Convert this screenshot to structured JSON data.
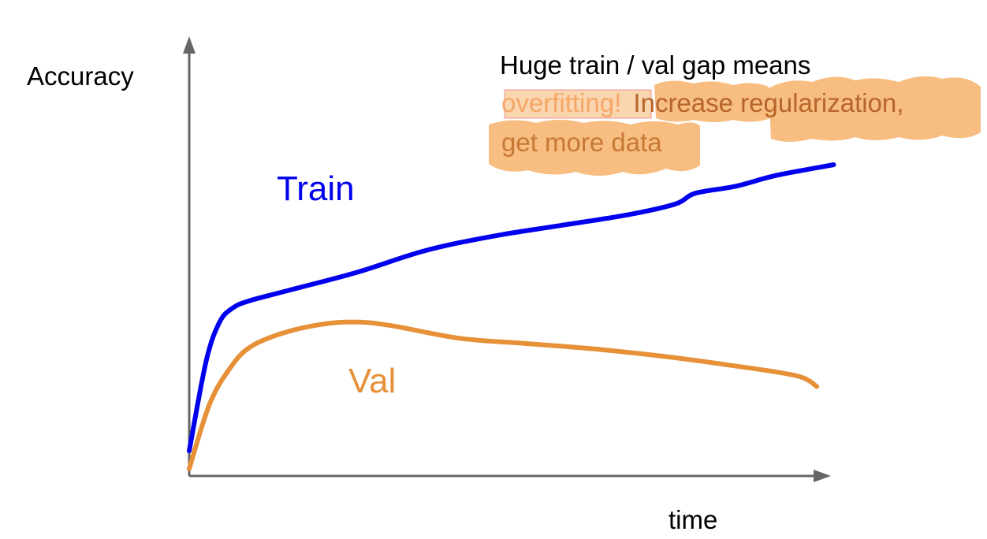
{
  "chart_data": {
    "type": "line",
    "title": "",
    "xlabel": "time",
    "ylabel": "Accuracy",
    "xlim": [
      0,
      100
    ],
    "ylim": [
      0,
      100
    ],
    "grid": false,
    "series": [
      {
        "name": "Train",
        "color": "#0000ee",
        "x": [
          0,
          2.5,
          4.5,
          6.5,
          9,
          15,
          25,
          35,
          45,
          55,
          65,
          72,
          75,
          81,
          87,
          95.5
        ],
        "y": [
          7,
          32,
          43,
          47,
          49,
          52,
          57,
          63,
          67,
          70,
          73,
          76,
          79,
          81,
          84,
          87
        ]
      },
      {
        "name": "Val",
        "color": "#e69138",
        "x": [
          0,
          3,
          6,
          9,
          14,
          20,
          25,
          30,
          40,
          50,
          60,
          70,
          80,
          90,
          93
        ],
        "y": [
          2,
          20,
          30,
          36,
          40,
          42.5,
          43,
          42,
          38.5,
          37,
          35.5,
          33.5,
          31,
          28,
          25
        ]
      }
    ]
  },
  "labels": {
    "train": "Train",
    "val": "Val"
  },
  "annotation": {
    "line1": "Huge train / val gap means",
    "line2_a": "overfitting!",
    "line2_b": "Increase regularization,",
    "line3": "get more data"
  },
  "colors": {
    "axis": "#666666",
    "highlight": "#f6b26b",
    "highlight_text": "#e69138"
  }
}
